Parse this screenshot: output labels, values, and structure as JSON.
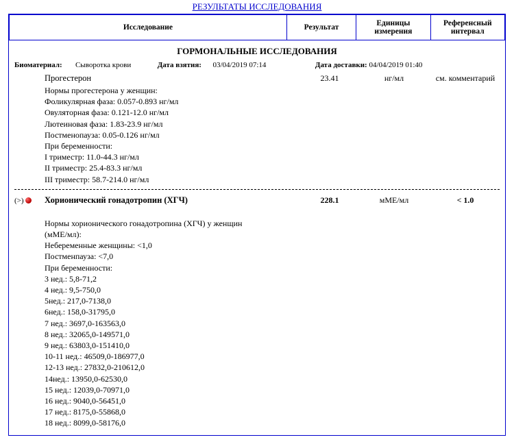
{
  "colors": {
    "frame": "#0000cd",
    "text": "#000000",
    "bg": "#ffffff",
    "flag_dot": "#b80000"
  },
  "page_title": "РЕЗУЛЬТАТЫ ИССЛЕДОВАНИЯ",
  "columns": {
    "test": "Исследование",
    "result": "Результат",
    "units": "Единицы измерения",
    "ref": "Референсный интервал"
  },
  "section_title": "ГОРМОНАЛЬНЫЕ ИССЛЕДОВАНИЯ",
  "meta": {
    "biomaterial_label": "Биоматериал:",
    "biomaterial_value": "Сыворотка крови",
    "taken_label": "Дата взятия:",
    "taken_value": "03/04/2019 07:14",
    "delivered_label": "Дата доставки:",
    "delivered_value": "04/04/2019 01:40"
  },
  "tests": [
    {
      "flag": "",
      "name": "Прогестерон",
      "name_bold": false,
      "result": "23.41",
      "result_bold": false,
      "units": "нг/мл",
      "ref": "см. комментарий",
      "norms": [
        "Нормы прогестерона у женщин:",
        "Фоликулярная фаза: 0.057-0.893 нг/мл",
        "Овуляторная фаза: 0.121-12.0 нг/мл",
        "Лютеиновая фаза: 1.83-23.9 нг/мл",
        "Постменопауза: 0.05-0.126 нг/мл",
        "При беременности:",
        "I триместр: 11.0-44.3 нг/мл",
        "II триместр: 25.4-83.3 нг/мл",
        "III триместр: 58.7-214.0 нг/мл"
      ]
    },
    {
      "flag": "(>)",
      "name": "Хорионический гонадотропин (ХГЧ)",
      "name_bold": true,
      "result": "228.1",
      "result_bold": true,
      "units": "мМЕ/мл",
      "ref": "< 1.0",
      "norms": [
        "",
        "Нормы хорионического гонадотропина (ХГЧ) у женщин",
        "(мМЕ/мл):",
        "Небеременные женщины: <1,0",
        "Постменпауза: <7,0",
        "При беременности:",
        "3 нед.: 5,8-71,2",
        "4 нед.: 9,5-750,0",
        "5нед.: 217,0-7138,0",
        "6нед.: 158,0-31795,0",
        "7 нед.: 3697,0-163563,0",
        "8 нед.: 32065,0-149571,0",
        "9 нед.: 63803,0-151410,0",
        "10-11 нед.: 46509,0-186977,0",
        "12-13 нед.: 27832,0-210612,0",
        "14нед.: 13950,0-62530,0",
        "15 нед.: 12039,0-70971,0",
        "16 нед.: 9040,0-56451,0",
        "17 нед.: 8175,0-55868,0",
        "18 нед.: 8099,0-58176,0"
      ]
    }
  ]
}
